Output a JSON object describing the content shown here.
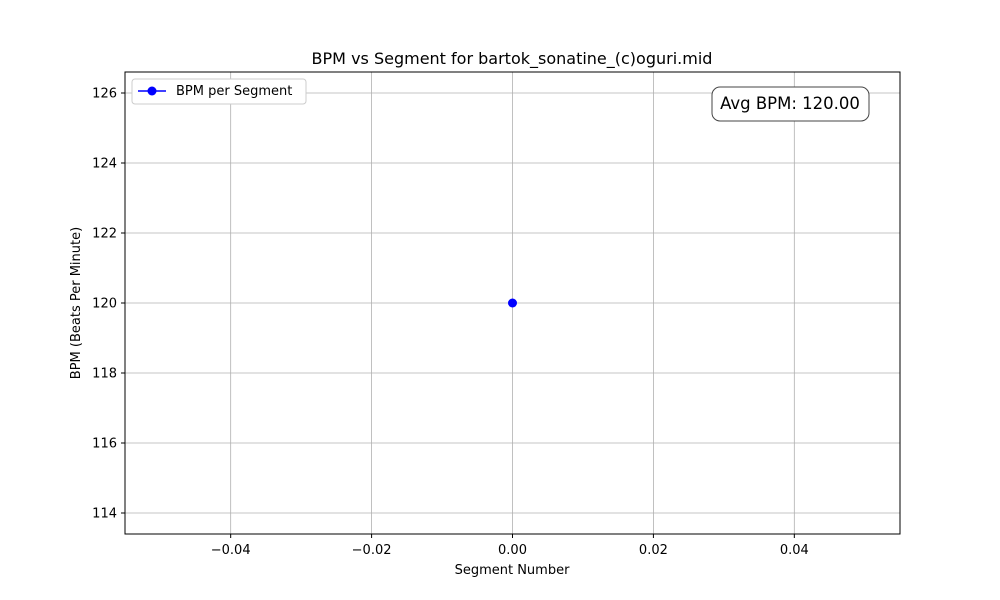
{
  "chart_data": {
    "type": "line",
    "title": "BPM vs Segment for bartok_sonatine_(c)oguri.mid",
    "xlabel": "Segment Number",
    "ylabel": "BPM (Beats Per Minute)",
    "xlim": [
      -0.055,
      0.055
    ],
    "ylim": [
      113.4,
      126.6
    ],
    "xticks": [
      -0.04,
      -0.02,
      0.0,
      0.02,
      0.04
    ],
    "xtick_labels": [
      "−0.04",
      "−0.02",
      "0.00",
      "0.02",
      "0.04"
    ],
    "yticks": [
      114,
      116,
      118,
      120,
      122,
      124,
      126
    ],
    "ytick_labels": [
      "114",
      "116",
      "118",
      "120",
      "122",
      "124",
      "126"
    ],
    "grid": true,
    "legend_position": "upper-left",
    "series": [
      {
        "name": "BPM per Segment",
        "color": "#0000ff",
        "marker": "circle",
        "x": [
          0
        ],
        "y": [
          120.0
        ]
      }
    ],
    "annotation": {
      "text": "Avg BPM: 120.00",
      "position": "upper-right"
    }
  }
}
